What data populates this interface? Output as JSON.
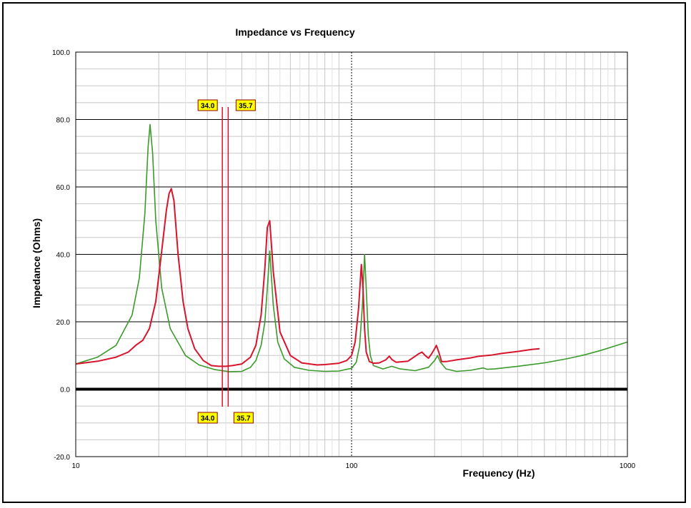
{
  "chart_data": {
    "type": "line",
    "title": "Impedance vs Frequency",
    "xlabel": "Frequency (Hz)",
    "ylabel": "Impedance (Ohms)",
    "x_scale": "log",
    "xlim": [
      10,
      1000
    ],
    "ylim": [
      -20,
      100
    ],
    "x_ticks": [
      "10",
      "100",
      "1000"
    ],
    "y_ticks": [
      "100.0",
      "80.0",
      "60.0",
      "40.0",
      "20.0",
      "0.0",
      "-20.0"
    ],
    "grid": true,
    "colors": {
      "series_green": "#3a9a2a",
      "series_red": "#d8142c",
      "marker_fill": "#ffff00"
    },
    "series": [
      {
        "color": "#3a9a2a",
        "x": [
          10,
          12,
          14,
          16,
          17,
          17.8,
          18.3,
          18.6,
          19,
          19.5,
          20.5,
          22,
          25,
          28,
          32,
          36,
          40,
          43,
          45,
          47,
          48.5,
          49.5,
          50.5,
          52,
          54,
          57,
          62,
          70,
          80,
          90,
          100,
          104,
          107,
          109.5,
          111.5,
          113,
          115,
          117,
          120,
          130,
          140,
          150,
          170,
          190,
          200,
          205,
          210,
          220,
          240,
          270,
          300,
          310,
          330,
          400,
          500,
          600,
          650,
          700,
          800,
          900,
          1000
        ],
        "y": [
          7.5,
          9.5,
          13,
          22,
          33,
          52,
          72,
          78.5,
          70,
          50,
          30,
          18,
          10,
          7.2,
          5.8,
          5.2,
          5.3,
          6.5,
          8.5,
          13,
          20,
          30,
          41,
          25,
          14,
          9,
          6.5,
          5.6,
          5.3,
          5.4,
          6.2,
          8,
          13,
          25,
          40,
          30,
          16,
          10,
          7,
          6,
          6.8,
          6,
          5.5,
          6.5,
          8.5,
          10,
          8,
          6,
          5.3,
          5.6,
          6.3,
          5.9,
          6,
          6.8,
          7.8,
          9,
          9.6,
          10.2,
          11.5,
          12.8,
          14
        ]
      },
      {
        "color": "#d8142c",
        "x": [
          10,
          12,
          14,
          15.5,
          16.5,
          17.5,
          18.5,
          19.5,
          20.5,
          21.3,
          21.8,
          22.2,
          22.7,
          23.5,
          24.5,
          25.5,
          27,
          29,
          31,
          33,
          35,
          37,
          40,
          43,
          45,
          47,
          48.5,
          49.5,
          50.5,
          52,
          55,
          60,
          66,
          75,
          80,
          90,
          96,
          100,
          103,
          106,
          108.5,
          110,
          111.5,
          113,
          116,
          120,
          126,
          133,
          137,
          140,
          145,
          160,
          175,
          180,
          185,
          190,
          195,
          200,
          203,
          207,
          212,
          220,
          240,
          270,
          290,
          300,
          320,
          350,
          400,
          450,
          480
        ],
        "y": [
          7.5,
          8.3,
          9.5,
          11,
          13,
          14.5,
          18,
          26,
          41,
          53,
          58,
          59.5,
          56,
          40,
          26,
          18,
          12,
          8.5,
          7,
          6.8,
          6.8,
          7,
          7.5,
          9.5,
          13,
          22,
          36,
          48,
          50,
          35,
          17,
          10,
          7.8,
          7.2,
          7.3,
          7.7,
          8.5,
          10,
          14,
          24,
          37,
          30,
          18,
          11,
          8.2,
          7.7,
          7.8,
          8.7,
          9.8,
          8.8,
          8,
          8.3,
          10.5,
          11,
          10,
          9.2,
          10.5,
          12,
          13,
          11,
          8.2,
          8.2,
          8.7,
          9.3,
          9.8,
          9.9,
          10.1,
          10.6,
          11.2,
          11.8,
          12
        ]
      }
    ],
    "markers": [
      {
        "frequency": 34.0,
        "label": "34.0"
      },
      {
        "frequency": 35.7,
        "label": "35.7"
      }
    ]
  }
}
